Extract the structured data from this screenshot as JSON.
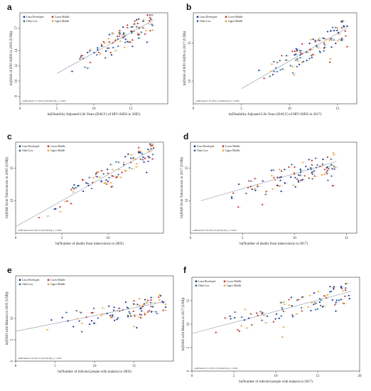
{
  "legend_entries": [
    "Least Developed",
    "Lower Middle",
    "Other Low",
    "Upper Middle"
  ],
  "colors": {
    "Least Developed": "#1f3a93",
    "Lower Middle": "#c0392b",
    "Other Low": "#2e6f9e",
    "Upper Middle": "#f0a53a",
    "fit_line": "#9aa7b2",
    "frame": "#333333"
  },
  "chart_data": [
    {
      "panel": "a",
      "type": "scatter",
      "xlabel": "ln(Disability Adjusted Life Years (DALY) of HIV/AIDS in 2005)",
      "ylabel": "ln(DAH of HIV/AIDS in 2005 (US$))",
      "xlim": [
        0,
        20
      ],
      "ylim": [
        7,
        19
      ],
      "xticks": [
        0,
        5,
        10,
        15
      ],
      "yticks": [
        8,
        10,
        12,
        14,
        17
      ],
      "coefficient": "coefficient=0. 57, 95% CI (0.50,0.76), p < 0.001",
      "fit": [
        [
          5,
          11
        ],
        [
          18,
          18
        ]
      ],
      "seed": 11,
      "n": 110
    },
    {
      "panel": "b",
      "type": "scatter",
      "xlabel": "ln(Disability Adjusted Life Years (DALY) of HIV/AIDS in 2017)",
      "ylabel": "ln(DAH of HIV/AIDS in 2017 (US$))",
      "xlim": [
        0,
        17
      ],
      "ylim": [
        7,
        19
      ],
      "xticks": [
        0,
        5,
        10,
        15
      ],
      "yticks": [
        10,
        15
      ],
      "coefficient": "coefficient=0. 76, 95% CI (0.66,0.91), p < 0.001",
      "fit": [
        [
          5,
          9
        ],
        [
          16,
          17
        ]
      ],
      "seed": 23,
      "n": 110
    },
    {
      "panel": "c",
      "type": "scatter",
      "xlabel": "ln(Number of deaths from tuberculosis in 2005)",
      "ylabel": "ln(DAH from Tuberculosis in 2005 (US$))",
      "xlim": [
        0,
        16
      ],
      "ylim": [
        5,
        19
      ],
      "xticks": [
        0,
        5,
        10
      ],
      "yticks": [
        10,
        15
      ],
      "coefficient": "coefficient=0. 90, 95% CI (0.76,0.95), p < 0.001",
      "fit": [
        [
          0,
          6
        ],
        [
          15,
          18
        ]
      ],
      "seed": 37,
      "n": 105
    },
    {
      "panel": "d",
      "type": "scatter",
      "xlabel": "ln(Number of deaths from tuberculosis in 2017)",
      "ylabel": "ln(DAH from Tuberculosis in 2017 (US$))",
      "xlim": [
        0,
        16
      ],
      "ylim": [
        5,
        19
      ],
      "xticks": [
        0,
        5,
        10,
        15
      ],
      "yticks": [
        10,
        15
      ],
      "coefficient": "coefficient=0. 59, 95% CI (0.50,0.67), p < 0.001",
      "fit": [
        [
          1,
          10
        ],
        [
          14,
          16
        ]
      ],
      "seed": 41,
      "n": 110
    },
    {
      "panel": "e",
      "type": "scatter",
      "xlabel": "ln(Number of infected people with malaria in 2005)",
      "ylabel": "ln(DAH with Malaria in 2005 (US$))",
      "xlim": [
        0,
        20
      ],
      "ylim": [
        0,
        20
      ],
      "xticks": [
        0,
        5,
        10,
        15
      ],
      "yticks": [
        0,
        5,
        10
      ],
      "coefficient": "coefficient=0. 28, 95% CI (0.19,0.36), p < 0.001",
      "fit": [
        [
          0,
          7
        ],
        [
          19,
          14
        ]
      ],
      "seed": 53,
      "n": 100
    },
    {
      "panel": "f",
      "type": "scatter",
      "xlabel": "ln(Number of infected people with malaria in 2017)",
      "ylabel": "ln(DAH with Malaria in 2017 (US$))",
      "xlim": [
        0,
        20
      ],
      "ylim": [
        0,
        20
      ],
      "xticks": [
        0,
        5,
        10,
        15,
        20
      ],
      "yticks": [
        0,
        5,
        10,
        15
      ],
      "coefficient": "coefficient=0. 51, 95% CI (0.40,0.61), p < 0.001",
      "fit": [
        [
          0,
          8
        ],
        [
          19,
          17
        ]
      ],
      "seed": 67,
      "n": 100
    }
  ]
}
